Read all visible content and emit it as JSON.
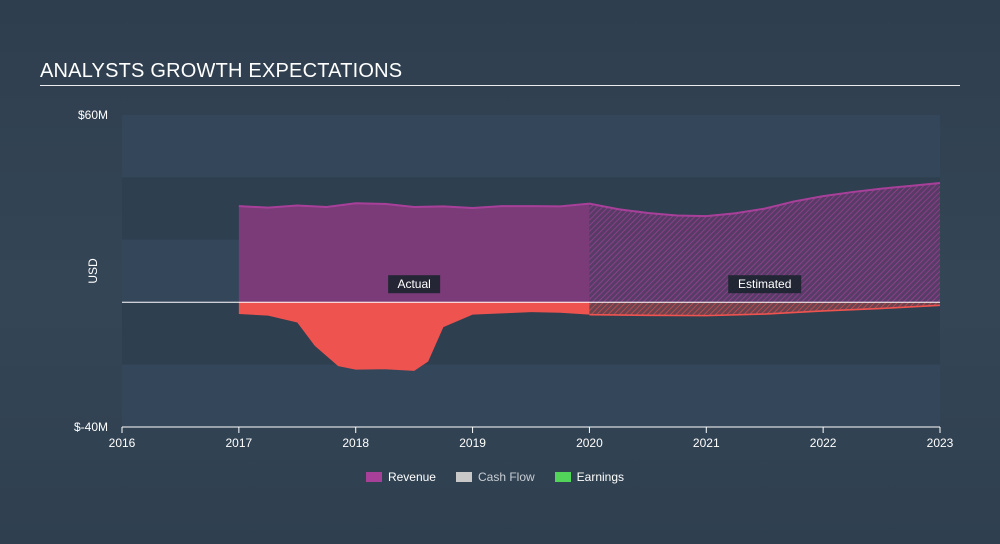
{
  "title": "ANALYSTS GROWTH EXPECTATIONS",
  "chart_data": {
    "type": "area",
    "ylabel": "USD",
    "ylim": [
      -40,
      60
    ],
    "y_tick_labels": [
      "$60M",
      "$-40M"
    ],
    "xlim": [
      2016,
      2023
    ],
    "x_ticks": [
      2016,
      2017,
      2018,
      2019,
      2020,
      2021,
      2022,
      2023
    ],
    "annotations": {
      "actual": "Actual",
      "estimated": "Estimated",
      "split_x": 2020
    },
    "series": [
      {
        "name": "Revenue",
        "color": "#a8409a",
        "points": [
          [
            2017.0,
            30.8
          ],
          [
            2017.25,
            30.3
          ],
          [
            2017.5,
            31.0
          ],
          [
            2017.75,
            30.5
          ],
          [
            2018.0,
            31.7
          ],
          [
            2018.25,
            31.5
          ],
          [
            2018.5,
            30.5
          ],
          [
            2018.75,
            30.7
          ],
          [
            2019.0,
            30.2
          ],
          [
            2019.25,
            30.8
          ],
          [
            2019.5,
            30.8
          ],
          [
            2019.75,
            30.7
          ],
          [
            2020.0,
            31.6
          ],
          [
            2020.25,
            29.8
          ],
          [
            2020.5,
            28.6
          ],
          [
            2020.75,
            27.8
          ],
          [
            2021.0,
            27.6
          ],
          [
            2021.25,
            28.5
          ],
          [
            2021.5,
            30.0
          ],
          [
            2021.75,
            32.3
          ],
          [
            2022.0,
            34.0
          ],
          [
            2022.25,
            35.3
          ],
          [
            2022.5,
            36.4
          ],
          [
            2022.75,
            37.3
          ],
          [
            2023.0,
            38.2
          ]
        ]
      },
      {
        "name": "Cash Flow",
        "color": "#cccccc",
        "points": []
      },
      {
        "name": "Earnings",
        "color": "#ef5350",
        "legend_color": "#52d45a",
        "points": [
          [
            2017.0,
            -3.8
          ],
          [
            2017.25,
            -4.3
          ],
          [
            2017.5,
            -6.5
          ],
          [
            2017.65,
            -14.0
          ],
          [
            2017.85,
            -20.5
          ],
          [
            2018.0,
            -21.6
          ],
          [
            2018.25,
            -21.5
          ],
          [
            2018.5,
            -22.0
          ],
          [
            2018.62,
            -19.0
          ],
          [
            2018.75,
            -8.0
          ],
          [
            2019.0,
            -4.0
          ],
          [
            2019.25,
            -3.6
          ],
          [
            2019.5,
            -3.2
          ],
          [
            2019.75,
            -3.4
          ],
          [
            2020.0,
            -4.0
          ],
          [
            2020.5,
            -4.2
          ],
          [
            2021.0,
            -4.3
          ],
          [
            2021.5,
            -3.8
          ],
          [
            2022.0,
            -2.8
          ],
          [
            2022.5,
            -2.0
          ],
          [
            2023.0,
            -1.0
          ]
        ]
      }
    ]
  },
  "legend": [
    {
      "label": "Revenue",
      "color": "#a8409a"
    },
    {
      "label": "Cash Flow",
      "color": "#c8c8c8"
    },
    {
      "label": "Earnings",
      "color": "#52d45a"
    }
  ]
}
